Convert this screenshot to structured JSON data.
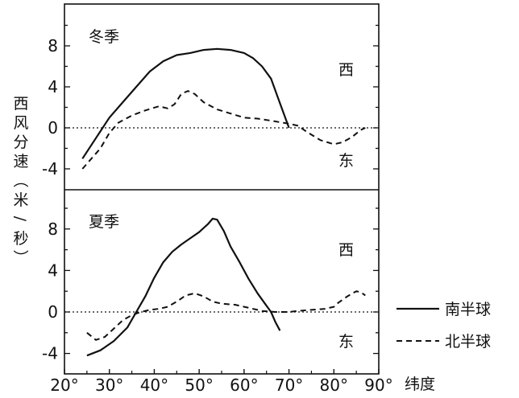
{
  "chart_data": [
    {
      "type": "line",
      "title": "冬季",
      "xlabel": "纬度",
      "ylabel": "西风分速（米/秒）",
      "xlim": [
        20,
        90
      ],
      "ylim": [
        -6,
        10
      ],
      "y_ticks": [
        -4,
        0,
        4,
        8
      ],
      "direction_labels": {
        "positive": "西",
        "negative": "东"
      },
      "series": [
        {
          "name": "南半球",
          "style": "solid",
          "points": [
            [
              24,
              -3
            ],
            [
              27,
              -1
            ],
            [
              30,
              1
            ],
            [
              33,
              2.5
            ],
            [
              36,
              4
            ],
            [
              39,
              5.5
            ],
            [
              42,
              6.5
            ],
            [
              45,
              7.1
            ],
            [
              48,
              7.3
            ],
            [
              51,
              7.6
            ],
            [
              54,
              7.7
            ],
            [
              57,
              7.6
            ],
            [
              60,
              7.3
            ],
            [
              62,
              6.8
            ],
            [
              64,
              6
            ],
            [
              66,
              4.8
            ],
            [
              67.5,
              3
            ],
            [
              69,
              1.2
            ],
            [
              70,
              0
            ]
          ]
        },
        {
          "name": "北半球",
          "style": "dashed",
          "points": [
            [
              24,
              -4
            ],
            [
              26,
              -3
            ],
            [
              28,
              -2
            ],
            [
              30,
              -0.5
            ],
            [
              32,
              0.5
            ],
            [
              35,
              1.2
            ],
            [
              38,
              1.7
            ],
            [
              41,
              2.1
            ],
            [
              43,
              1.9
            ],
            [
              44.5,
              2.3
            ],
            [
              46,
              3.3
            ],
            [
              47.5,
              3.6
            ],
            [
              49,
              3.3
            ],
            [
              51,
              2.5
            ],
            [
              54,
              1.8
            ],
            [
              57,
              1.4
            ],
            [
              60,
              1.0
            ],
            [
              63,
              0.9
            ],
            [
              66,
              0.7
            ],
            [
              70,
              0.4
            ],
            [
              72,
              0.2
            ],
            [
              74,
              -0.4
            ],
            [
              77,
              -1.2
            ],
            [
              80,
              -1.6
            ],
            [
              82,
              -1.4
            ],
            [
              84,
              -0.9
            ],
            [
              86,
              -0.2
            ],
            [
              87,
              0
            ]
          ]
        }
      ]
    },
    {
      "type": "line",
      "title": "夏季",
      "xlabel": "纬度",
      "ylabel": "西风分速（米/秒）",
      "xlim": [
        20,
        90
      ],
      "ylim": [
        -5,
        10
      ],
      "y_ticks": [
        -4,
        0,
        4,
        8
      ],
      "direction_labels": {
        "positive": "西",
        "negative": "东"
      },
      "series": [
        {
          "name": "南半球",
          "style": "solid",
          "points": [
            [
              25,
              -4.2
            ],
            [
              28,
              -3.7
            ],
            [
              31,
              -2.8
            ],
            [
              34,
              -1.5
            ],
            [
              36,
              0
            ],
            [
              38,
              1.5
            ],
            [
              40,
              3.3
            ],
            [
              42,
              4.8
            ],
            [
              44,
              5.8
            ],
            [
              46,
              6.5
            ],
            [
              48,
              7.1
            ],
            [
              50,
              7.7
            ],
            [
              52,
              8.5
            ],
            [
              53,
              9
            ],
            [
              54,
              8.9
            ],
            [
              55.5,
              7.8
            ],
            [
              57,
              6.3
            ],
            [
              59,
              4.8
            ],
            [
              61,
              3.2
            ],
            [
              63,
              1.8
            ],
            [
              65,
              0.6
            ],
            [
              66,
              0
            ],
            [
              67,
              -1
            ],
            [
              68,
              -1.8
            ]
          ]
        },
        {
          "name": "北半球",
          "style": "dashed",
          "points": [
            [
              25,
              -2
            ],
            [
              27,
              -2.7
            ],
            [
              29,
              -2.4
            ],
            [
              31,
              -1.6
            ],
            [
              33,
              -0.8
            ],
            [
              35,
              -0.3
            ],
            [
              37,
              0
            ],
            [
              39,
              0.2
            ],
            [
              41,
              0.3
            ],
            [
              43,
              0.5
            ],
            [
              45,
              1.0
            ],
            [
              47,
              1.6
            ],
            [
              49,
              1.8
            ],
            [
              51,
              1.5
            ],
            [
              53,
              1.0
            ],
            [
              55,
              0.8
            ],
            [
              58,
              0.7
            ],
            [
              61,
              0.4
            ],
            [
              64,
              0.1
            ],
            [
              67,
              0
            ],
            [
              70,
              0
            ],
            [
              72,
              0.1
            ],
            [
              75,
              0.2
            ],
            [
              78,
              0.3
            ],
            [
              80,
              0.5
            ],
            [
              81,
              0.9
            ],
            [
              83,
              1.5
            ],
            [
              85,
              2.0
            ],
            [
              86,
              1.9
            ],
            [
              87,
              1.6
            ]
          ]
        }
      ]
    }
  ],
  "axis": {
    "x_tick_labels": [
      "20°",
      "30°",
      "40°",
      "50°",
      "60°",
      "70°",
      "80°",
      "90°"
    ],
    "x_title": "纬度",
    "y_title_chars": [
      "西",
      "风",
      "分",
      "速",
      "（",
      "米",
      "/",
      "秒",
      "）"
    ]
  },
  "panels": {
    "winter": {
      "season": "冬季",
      "west": "西",
      "east": "东",
      "y_tick_labels": [
        "8",
        "4",
        "0",
        "-4"
      ]
    },
    "summer": {
      "season": "夏季",
      "west": "西",
      "east": "东",
      "y_tick_labels": [
        "8",
        "4",
        "0",
        "-4"
      ]
    }
  },
  "legend": {
    "items": [
      {
        "label": "南半球",
        "style": "solid"
      },
      {
        "label": "北半球",
        "style": "dashed"
      }
    ]
  },
  "colors": {
    "line": "#111111",
    "zero_line": "#111111",
    "frame": "#111111"
  }
}
